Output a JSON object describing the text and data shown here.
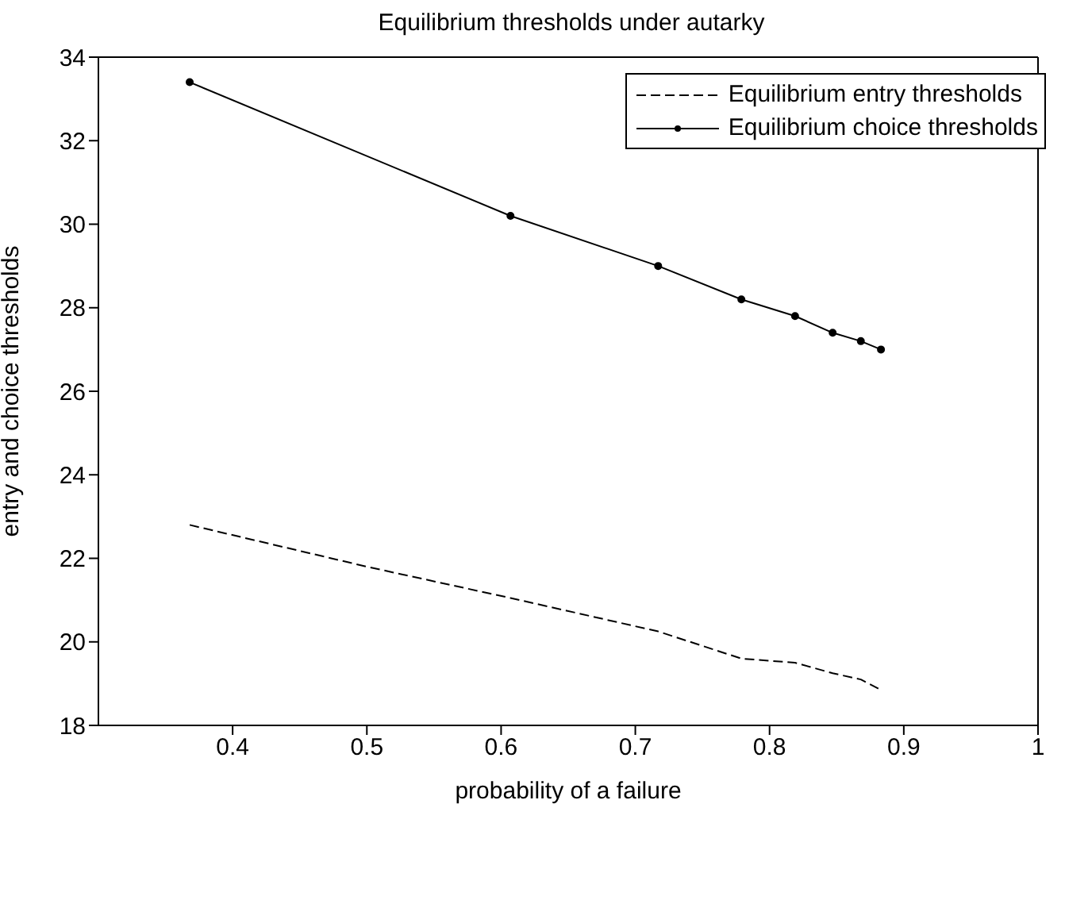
{
  "chart_data": {
    "type": "line",
    "title": "Equilibrium thresholds under autarky",
    "xlabel": "probability of a failure",
    "ylabel": "entry and choice thresholds",
    "xlim": [
      0.3,
      1
    ],
    "xticks": [
      0.4,
      0.5,
      0.6,
      0.7,
      0.8,
      0.9,
      1
    ],
    "ylim": [
      18,
      34
    ],
    "yticks": [
      18,
      20,
      22,
      24,
      26,
      28,
      30,
      32,
      34
    ],
    "legend": "top right",
    "series": [
      {
        "name": "Equilibrium entry thresholds",
        "color": "#000000",
        "line_style": "dashed",
        "marker": "none",
        "x": [
          0.368,
          0.5,
          0.607,
          0.717,
          0.779,
          0.819,
          0.847,
          0.868,
          0.883
        ],
        "values": [
          22.8,
          21.8,
          21.05,
          20.25,
          19.6,
          19.5,
          19.25,
          19.1,
          18.85
        ]
      },
      {
        "name": "Equilibrium choice thresholds",
        "color": "#000000",
        "line_style": "solid",
        "marker": "circle",
        "x": [
          0.368,
          0.607,
          0.717,
          0.779,
          0.819,
          0.847,
          0.868,
          0.883
        ],
        "values": [
          33.4,
          30.2,
          29.0,
          28.2,
          27.8,
          27.4,
          27.2,
          27.0
        ]
      }
    ]
  }
}
